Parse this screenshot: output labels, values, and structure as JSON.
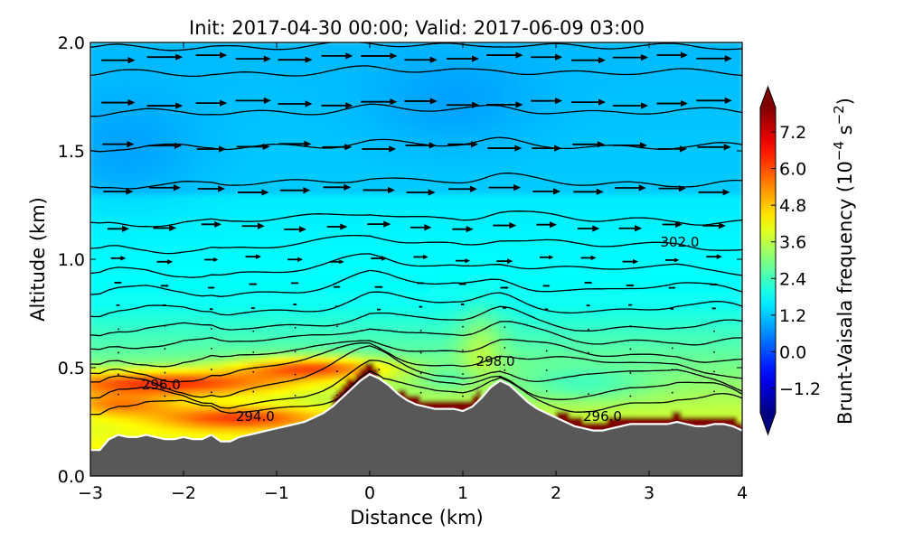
{
  "chart_data": {
    "type": "heatmap",
    "title": "Init: 2017-04-30 00:00; Valid: 2017-06-09 03:00",
    "xlabel": "Distance (km)",
    "ylabel": "Altitude (km)",
    "xlim": [
      -3,
      4
    ],
    "ylim": [
      0,
      2
    ],
    "x_ticks": [
      -3,
      -2,
      -1,
      0,
      1,
      2,
      3,
      4
    ],
    "x_tick_labels": [
      "−3",
      "−2",
      "−1",
      "0",
      "1",
      "2",
      "3",
      "4"
    ],
    "y_ticks": [
      0.0,
      0.5,
      1.0,
      1.5,
      2.0
    ],
    "y_tick_labels": [
      "0.0",
      "0.5",
      "1.0",
      "1.5",
      "2.0"
    ],
    "colorbar": {
      "label_parts": [
        "Brunt-Vaisala frequency (10",
        "−4",
        " s",
        "−2",
        ")"
      ],
      "range": [
        -2.0,
        8.0
      ],
      "extend": "both",
      "colormap": "jet",
      "ticks": [
        -1.2,
        0.0,
        1.2,
        2.4,
        3.6,
        4.8,
        6.0,
        7.2
      ],
      "tick_labels": [
        "−1.2",
        "0.0",
        "1.2",
        "2.4",
        "3.6",
        "4.8",
        "6.0",
        "7.2"
      ]
    },
    "terrain": {
      "color": "#585858",
      "outline_color": "#ffffff",
      "x": [
        -3.0,
        -2.9,
        -2.8,
        -2.7,
        -2.6,
        -2.5,
        -2.4,
        -2.3,
        -2.2,
        -2.1,
        -2.0,
        -1.9,
        -1.8,
        -1.7,
        -1.6,
        -1.5,
        -1.4,
        -1.3,
        -1.2,
        -1.1,
        -1.0,
        -0.9,
        -0.8,
        -0.7,
        -0.6,
        -0.5,
        -0.4,
        -0.3,
        -0.2,
        -0.1,
        0.0,
        0.1,
        0.2,
        0.3,
        0.4,
        0.5,
        0.6,
        0.7,
        0.8,
        0.9,
        1.0,
        1.1,
        1.2,
        1.3,
        1.4,
        1.5,
        1.6,
        1.7,
        1.8,
        1.9,
        2.0,
        2.1,
        2.2,
        2.3,
        2.4,
        2.5,
        2.6,
        2.7,
        2.8,
        2.9,
        3.0,
        3.1,
        3.2,
        3.3,
        3.4,
        3.5,
        3.6,
        3.7,
        3.8,
        3.9,
        4.0
      ],
      "height": [
        0.12,
        0.12,
        0.17,
        0.19,
        0.18,
        0.18,
        0.19,
        0.18,
        0.17,
        0.17,
        0.18,
        0.17,
        0.17,
        0.19,
        0.16,
        0.16,
        0.18,
        0.19,
        0.2,
        0.21,
        0.22,
        0.23,
        0.24,
        0.25,
        0.27,
        0.29,
        0.32,
        0.36,
        0.4,
        0.44,
        0.47,
        0.45,
        0.42,
        0.38,
        0.35,
        0.33,
        0.32,
        0.31,
        0.31,
        0.31,
        0.3,
        0.32,
        0.36,
        0.41,
        0.44,
        0.42,
        0.38,
        0.34,
        0.31,
        0.29,
        0.27,
        0.25,
        0.23,
        0.22,
        0.21,
        0.21,
        0.22,
        0.23,
        0.24,
        0.24,
        0.24,
        0.24,
        0.24,
        0.25,
        0.24,
        0.23,
        0.23,
        0.24,
        0.24,
        0.23,
        0.21
      ]
    },
    "isentropes": [
      {
        "base": 0.33,
        "amp": 0.05
      },
      {
        "base": 0.38,
        "amp": 0.07
      },
      {
        "base": 0.44,
        "amp": 0.08
      },
      {
        "base": 0.5,
        "amp": 0.06
      },
      {
        "base": 0.555,
        "amp": 0.04
      },
      {
        "base": 0.625,
        "amp": 0.03
      },
      {
        "base": 0.69,
        "amp": 0.03
      },
      {
        "base": 0.77,
        "amp": 0.03
      },
      {
        "base": 0.86,
        "amp": 0.03
      },
      {
        "base": 0.95,
        "amp": 0.025
      },
      {
        "base": 1.06,
        "amp": 0.02
      },
      {
        "base": 1.18,
        "amp": 0.02
      },
      {
        "base": 1.35,
        "amp": 0.015
      },
      {
        "base": 1.52,
        "amp": 0.01
      },
      {
        "base": 1.68,
        "amp": 0.01
      },
      {
        "base": 1.86,
        "amp": 0.01
      },
      {
        "base": 1.98,
        "amp": 0.005
      }
    ],
    "contour_labels": [
      {
        "text": "296.0",
        "x": -2.24,
        "y": 0.42
      },
      {
        "text": "294.0",
        "x": -1.23,
        "y": 0.275
      },
      {
        "text": "298.0",
        "x": 1.35,
        "y": 0.53
      },
      {
        "text": "296.0",
        "x": 2.5,
        "y": 0.275
      },
      {
        "text": "302.0",
        "x": 3.33,
        "y": 1.08
      }
    ],
    "wind_vectors": {
      "x": [
        -2.7,
        -2.2,
        -1.7,
        -1.25,
        -0.8,
        -0.35,
        0.1,
        0.55,
        1.0,
        1.45,
        1.9,
        2.35,
        2.8,
        3.25,
        3.7
      ],
      "rows": [
        {
          "y": 1.93,
          "u": 0.85
        },
        {
          "y": 1.72,
          "u": 0.85
        },
        {
          "y": 1.52,
          "u": 0.8
        },
        {
          "y": 1.32,
          "u": 0.75
        },
        {
          "y": 1.15,
          "u": 0.55
        },
        {
          "y": 1.0,
          "u": 0.38
        },
        {
          "y": 0.88,
          "u": 0.2
        },
        {
          "y": 0.78,
          "u": 0.1
        },
        {
          "y": 0.68,
          "u": 0.04
        },
        {
          "y": 0.58,
          "u": 0.02
        },
        {
          "y": 0.48,
          "u": 0.01
        },
        {
          "y": 0.38,
          "u": 0.01
        }
      ]
    }
  }
}
